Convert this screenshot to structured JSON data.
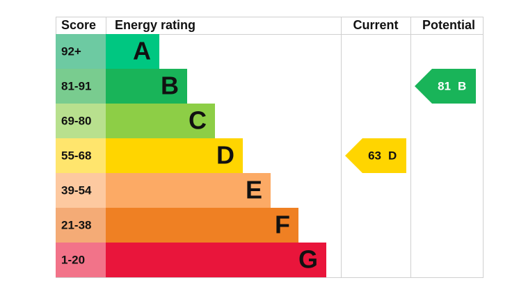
{
  "header": {
    "score": "Score",
    "rating": "Energy rating",
    "current": "Current",
    "potential": "Potential"
  },
  "bands": [
    {
      "range": "92+",
      "letter": "A",
      "color": "#00c781",
      "light": "#6dcaa2"
    },
    {
      "range": "81-91",
      "letter": "B",
      "color": "#19b459",
      "light": "#79cc8f"
    },
    {
      "range": "69-80",
      "letter": "C",
      "color": "#8dce46",
      "light": "#b8e08e"
    },
    {
      "range": "55-68",
      "letter": "D",
      "color": "#ffd500",
      "light": "#ffe56d"
    },
    {
      "range": "39-54",
      "letter": "E",
      "color": "#fcaa65",
      "light": "#fdc9a0"
    },
    {
      "range": "21-38",
      "letter": "F",
      "color": "#ef8023",
      "light": "#f4ab76"
    },
    {
      "range": "1-20",
      "letter": "G",
      "color": "#e9153b",
      "light": "#f27389"
    }
  ],
  "current": {
    "score": 63,
    "band": "D"
  },
  "potential": {
    "score": 81,
    "band": "B"
  }
}
